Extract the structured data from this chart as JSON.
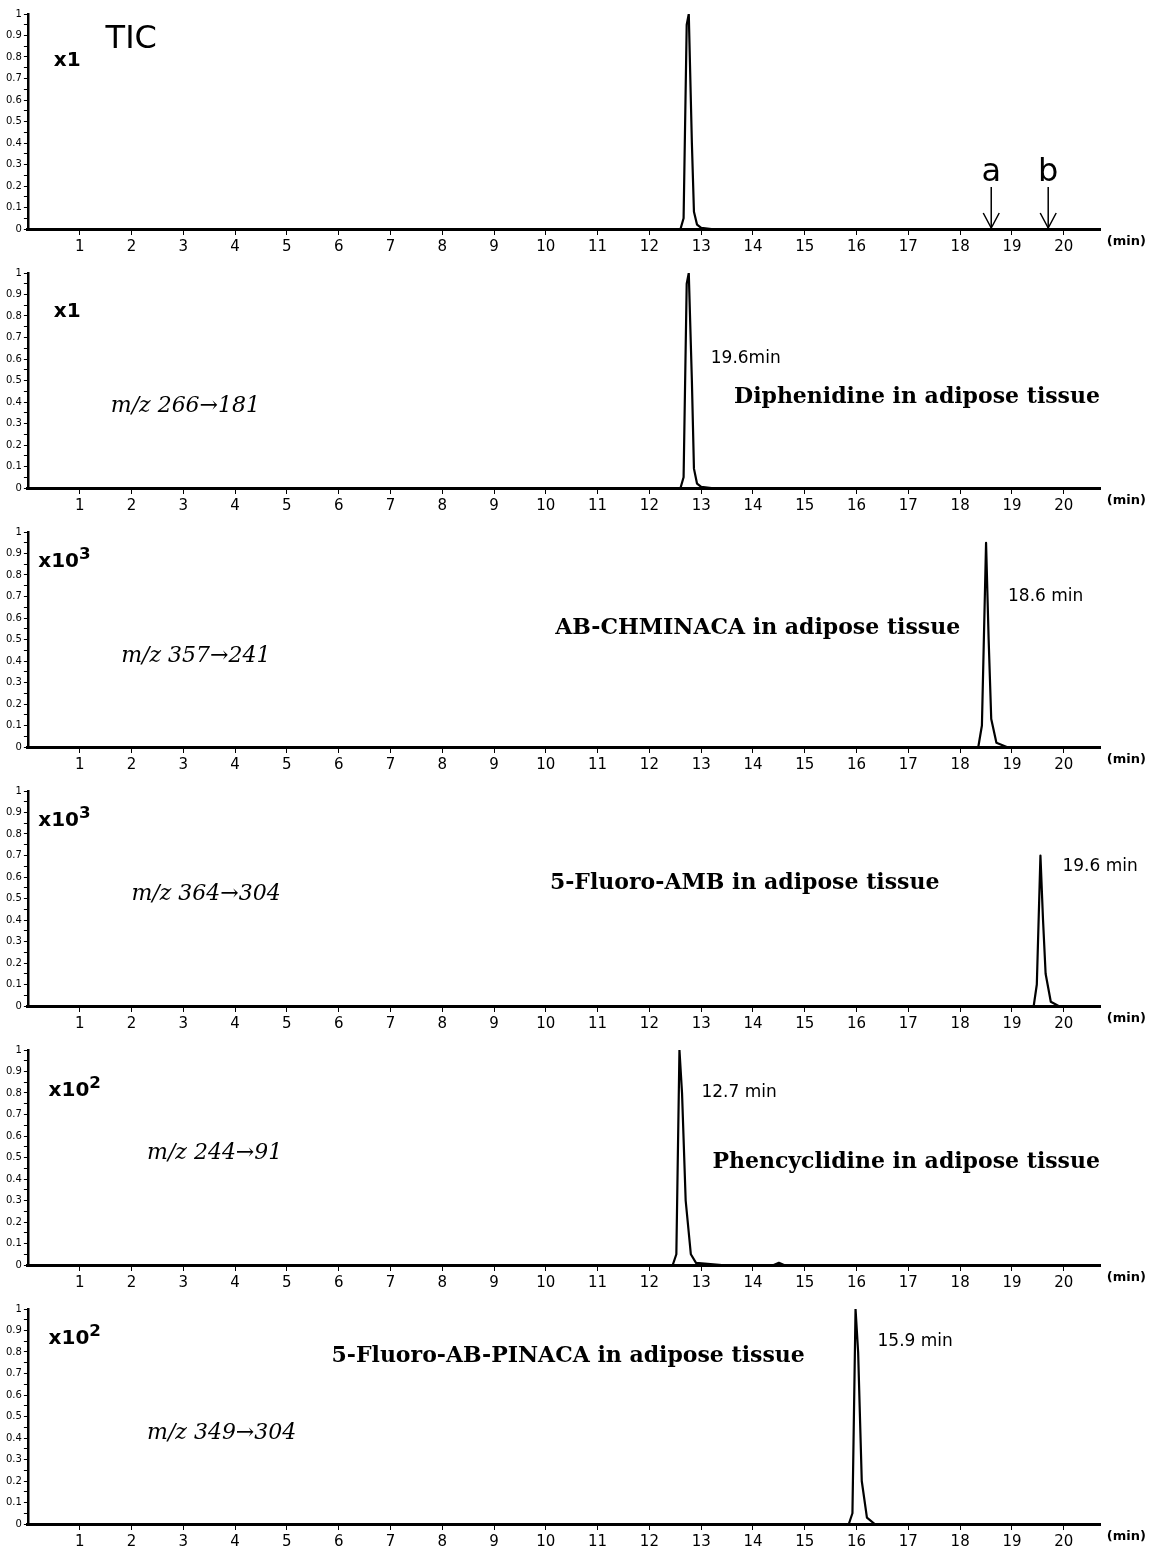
{
  "chart_data": [
    {
      "type": "line",
      "title": "TIC",
      "xlabel": "(min)",
      "x": [
        0,
        12.6,
        12.66,
        12.72,
        12.76,
        12.82,
        12.86,
        12.92,
        13.0,
        13.2,
        20.7
      ],
      "series": [
        {
          "color": "#000000",
          "values": [
            0,
            0,
            0.05,
            0.95,
            1.0,
            0.4,
            0.08,
            0.02,
            0.005,
            0,
            0
          ]
        }
      ],
      "xlim": [
        0,
        20.7
      ],
      "ylim": [
        0,
        1
      ],
      "xticks": [
        1,
        2,
        3,
        4,
        5,
        6,
        7,
        8,
        9,
        10,
        11,
        12,
        13,
        14,
        15,
        16,
        17,
        18,
        19,
        20
      ],
      "yticks": [
        0,
        {
          "value": 0.05,
          "label": null
        },
        0.1,
        {
          "value": 0.15,
          "label": null
        },
        0.2,
        {
          "value": 0.25,
          "label": null
        },
        0.3,
        {
          "value": 0.35,
          "label": null
        },
        0.4,
        {
          "value": 0.45,
          "label": null
        },
        0.5,
        {
          "value": 0.55,
          "label": null
        },
        0.6,
        {
          "value": 0.65,
          "label": null
        },
        0.7,
        {
          "value": 0.75,
          "label": null
        },
        0.8,
        {
          "value": 0.85,
          "label": null
        },
        0.9,
        {
          "value": 0.95,
          "label": null
        },
        1
      ],
      "grid": false,
      "legend": false,
      "marker": "none",
      "line_style": "solid",
      "annotations": [
        "x1",
        {
          "text": "a",
          "x": 18.6,
          "y": 0
        },
        {
          "text": "b",
          "x": 19.7,
          "y": 0
        }
      ]
    },
    {
      "type": "line",
      "title": "Diphenidine in adipose tissue",
      "xlabel": "(min)",
      "x": [
        0,
        12.6,
        12.66,
        12.72,
        12.76,
        12.82,
        12.86,
        12.92,
        13.0,
        13.2,
        20.7
      ],
      "series": [
        {
          "color": "#000000",
          "values": [
            0,
            0,
            0.05,
            0.95,
            1.0,
            0.5,
            0.09,
            0.02,
            0.005,
            0,
            0
          ]
        }
      ],
      "xlim": [
        0,
        20.7
      ],
      "ylim": [
        0,
        1
      ],
      "xticks": [
        1,
        2,
        3,
        4,
        5,
        6,
        7,
        8,
        9,
        10,
        11,
        12,
        13,
        14,
        15,
        16,
        17,
        18,
        19,
        20
      ],
      "yticks": [
        0,
        {
          "value": 0.05,
          "label": null
        },
        0.1,
        {
          "value": 0.15,
          "label": null
        },
        0.2,
        {
          "value": 0.25,
          "label": null
        },
        0.3,
        {
          "value": 0.35,
          "label": null
        },
        0.4,
        {
          "value": 0.45,
          "label": null
        },
        0.5,
        {
          "value": 0.55,
          "label": null
        },
        0.6,
        {
          "value": 0.65,
          "label": null
        },
        0.7,
        {
          "value": 0.75,
          "label": null
        },
        0.8,
        {
          "value": 0.85,
          "label": null
        },
        0.9,
        {
          "value": 0.95,
          "label": null
        },
        1
      ],
      "grid": false,
      "legend": false,
      "marker": "none",
      "line_style": "solid",
      "annotations": [
        "x1",
        "m/z 266→181",
        {
          "text": "19.6min",
          "x": 12.76,
          "y": 0.6
        }
      ]
    },
    {
      "type": "line",
      "title": "AB-CHMINACA in adipose tissue",
      "xlabel": "(min)",
      "x": [
        0,
        18.35,
        18.42,
        18.5,
        18.55,
        18.6,
        18.7,
        18.9,
        20.7
      ],
      "series": [
        {
          "color": "#000000",
          "values": [
            0,
            0,
            0.1,
            0.95,
            0.5,
            0.13,
            0.02,
            0,
            0
          ]
        }
      ],
      "xlim": [
        0,
        20.7
      ],
      "ylim": [
        0,
        1
      ],
      "xticks": [
        1,
        2,
        3,
        4,
        5,
        6,
        7,
        8,
        9,
        10,
        11,
        12,
        13,
        14,
        15,
        16,
        17,
        18,
        19,
        20
      ],
      "yticks": [
        0,
        {
          "value": 0.05,
          "label": null
        },
        0.1,
        {
          "value": 0.15,
          "label": null
        },
        0.2,
        {
          "value": 0.25,
          "label": null
        },
        0.3,
        {
          "value": 0.35,
          "label": null
        },
        0.4,
        {
          "value": 0.45,
          "label": null
        },
        0.5,
        {
          "value": 0.55,
          "label": null
        },
        0.6,
        {
          "value": 0.65,
          "label": null
        },
        0.7,
        {
          "value": 0.75,
          "label": null
        },
        0.8,
        {
          "value": 0.85,
          "label": null
        },
        0.9,
        {
          "value": 0.95,
          "label": null
        },
        1
      ],
      "grid": false,
      "legend": false,
      "marker": "none",
      "line_style": "solid",
      "annotations": [
        "x10$^{3}$",
        "m/z 357→241",
        {
          "text": "18.6 min",
          "x": 18.5,
          "y": 0.7
        }
      ]
    },
    {
      "type": "line",
      "title": "5-Fluoro-AMB in adipose tissue",
      "xlabel": "(min)",
      "x": [
        0,
        19.42,
        19.48,
        19.55,
        19.6,
        19.65,
        19.75,
        19.9,
        20.7
      ],
      "series": [
        {
          "color": "#000000",
          "values": [
            0,
            0,
            0.1,
            0.7,
            0.4,
            0.15,
            0.02,
            0,
            0
          ]
        }
      ],
      "xlim": [
        0,
        20.7
      ],
      "ylim": [
        0,
        1
      ],
      "xticks": [
        1,
        2,
        3,
        4,
        5,
        6,
        7,
        8,
        9,
        10,
        11,
        12,
        13,
        14,
        15,
        16,
        17,
        18,
        19,
        20
      ],
      "yticks": [
        0,
        {
          "value": 0.05,
          "label": null
        },
        0.1,
        {
          "value": 0.15,
          "label": null
        },
        0.2,
        {
          "value": 0.25,
          "label": null
        },
        0.3,
        {
          "value": 0.35,
          "label": null
        },
        0.4,
        {
          "value": 0.45,
          "label": null
        },
        0.5,
        {
          "value": 0.55,
          "label": null
        },
        0.6,
        {
          "value": 0.65,
          "label": null
        },
        0.7,
        {
          "value": 0.75,
          "label": null
        },
        0.8,
        {
          "value": 0.85,
          "label": null
        },
        0.9,
        {
          "value": 0.95,
          "label": null
        },
        1
      ],
      "grid": false,
      "legend": false,
      "marker": "none",
      "line_style": "solid",
      "annotations": [
        "x10$^{3}$",
        "m/z 364→304",
        {
          "text": "19.6 min",
          "x": 19.55,
          "y": 0.65
        }
      ]
    },
    {
      "type": "line",
      "title": "Phencyclidine in adipose tissue",
      "xlabel": "(min)",
      "x": [
        0,
        12.45,
        12.52,
        12.58,
        12.63,
        12.7,
        12.8,
        12.9,
        13.4,
        14.4,
        14.5,
        14.6,
        20.7
      ],
      "series": [
        {
          "color": "#000000",
          "values": [
            0,
            0,
            0.05,
            1.0,
            0.8,
            0.3,
            0.05,
            0.01,
            0,
            0,
            0.01,
            0,
            0
          ]
        }
      ],
      "xlim": [
        0,
        20.7
      ],
      "ylim": [
        0,
        1
      ],
      "xticks": [
        1,
        2,
        3,
        4,
        5,
        6,
        7,
        8,
        9,
        10,
        11,
        12,
        13,
        14,
        15,
        16,
        17,
        18,
        19,
        20
      ],
      "yticks": [
        0,
        {
          "value": 0.05,
          "label": null
        },
        0.1,
        {
          "value": 0.15,
          "label": null
        },
        0.2,
        {
          "value": 0.25,
          "label": null
        },
        0.3,
        {
          "value": 0.35,
          "label": null
        },
        0.4,
        {
          "value": 0.45,
          "label": null
        },
        0.5,
        {
          "value": 0.55,
          "label": null
        },
        0.6,
        {
          "value": 0.65,
          "label": null
        },
        0.7,
        {
          "value": 0.75,
          "label": null
        },
        0.8,
        {
          "value": 0.85,
          "label": null
        },
        0.9,
        {
          "value": 0.95,
          "label": null
        },
        1
      ],
      "grid": false,
      "legend": false,
      "marker": "none",
      "line_style": "solid",
      "annotations": [
        "x10$^{2}$",
        "m/z 244→91",
        {
          "text": "12.7 min",
          "x": 12.58,
          "y": 0.8
        }
      ]
    },
    {
      "type": "line",
      "title": "5-Fluoro-AB-PINACA in adipose tissue",
      "xlabel": "(min)",
      "x": [
        0,
        15.85,
        15.92,
        15.98,
        16.03,
        16.1,
        16.2,
        16.35,
        20.7
      ],
      "series": [
        {
          "color": "#000000",
          "values": [
            0,
            0,
            0.05,
            1.0,
            0.8,
            0.2,
            0.03,
            0,
            0
          ]
        }
      ],
      "xlim": [
        0,
        20.7
      ],
      "ylim": [
        0,
        1
      ],
      "xticks": [
        1,
        2,
        3,
        4,
        5,
        6,
        7,
        8,
        9,
        10,
        11,
        12,
        13,
        14,
        15,
        16,
        17,
        18,
        19,
        20
      ],
      "yticks": [
        0,
        {
          "value": 0.05,
          "label": null
        },
        0.1,
        {
          "value": 0.15,
          "label": null
        },
        0.2,
        {
          "value": 0.25,
          "label": null
        },
        0.3,
        {
          "value": 0.35,
          "label": null
        },
        0.4,
        {
          "value": 0.45,
          "label": null
        },
        0.5,
        {
          "value": 0.55,
          "label": null
        },
        0.6,
        {
          "value": 0.65,
          "label": null
        },
        0.7,
        {
          "value": 0.75,
          "label": null
        },
        0.8,
        {
          "value": 0.85,
          "label": null
        },
        0.9,
        {
          "value": 0.95,
          "label": null
        },
        1
      ],
      "grid": false,
      "legend": false,
      "marker": "none",
      "line_style": "solid",
      "annotations": [
        "x10$^{2}$",
        "m/z 349→304",
        {
          "text": "15.9 min",
          "x": 15.98,
          "y": 0.85
        }
      ]
    }
  ]
}
